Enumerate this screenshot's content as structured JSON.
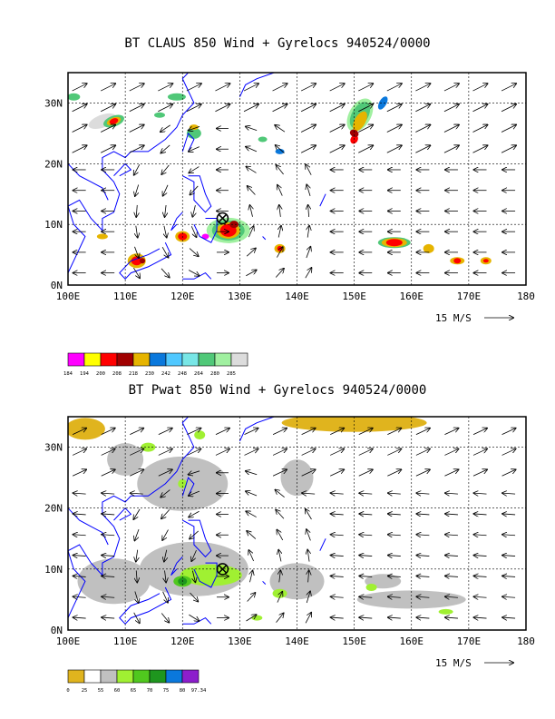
{
  "chart_data": [
    {
      "type": "map",
      "title": "BT CLAUS 850 Wind + Gyrelocs 940524/0000",
      "xlim": [
        100,
        180
      ],
      "ylim": [
        0,
        35
      ],
      "x_ticks": [
        "100E",
        "110E",
        "120E",
        "130E",
        "140E",
        "150E",
        "160E",
        "170E",
        "180"
      ],
      "y_ticks": [
        "0N",
        "10N",
        "20N",
        "30N"
      ],
      "vector_key": "15 M/S",
      "gyre_location": {
        "lon": 127,
        "lat": 11
      },
      "colorbar": {
        "levels": [
          "184",
          "194",
          "200",
          "208",
          "218",
          "230",
          "242",
          "248",
          "264",
          "280",
          "285"
        ],
        "colors": [
          "#ff00ff",
          "#ffff00",
          "#ff0000",
          "#a00000",
          "#e6b400",
          "#0a78dc",
          "#50c8ff",
          "#78e6e6",
          "#50c878",
          "#a0f0a0",
          "#dcdcdc"
        ]
      }
    },
    {
      "type": "map",
      "title": "BT Pwat 850 Wind + Gyrelocs 940524/0000",
      "xlim": [
        100,
        180
      ],
      "ylim": [
        0,
        35
      ],
      "x_ticks": [
        "100E",
        "110E",
        "120E",
        "130E",
        "140E",
        "150E",
        "160E",
        "170E",
        "180"
      ],
      "y_ticks": [
        "0N",
        "10N",
        "20N",
        "30N"
      ],
      "vector_key": "15 M/S",
      "gyre_location": {
        "lon": 127,
        "lat": 10
      },
      "colorbar": {
        "levels": [
          "0",
          "25",
          "55",
          "60",
          "65",
          "70",
          "75",
          "80",
          "97.34"
        ],
        "colors": [
          "#e0b41e",
          "#ffffff",
          "#c0c0c0",
          "#a0f032",
          "#50c81e",
          "#1e961e",
          "#0a78dc",
          "#8c1ecc"
        ]
      }
    }
  ]
}
